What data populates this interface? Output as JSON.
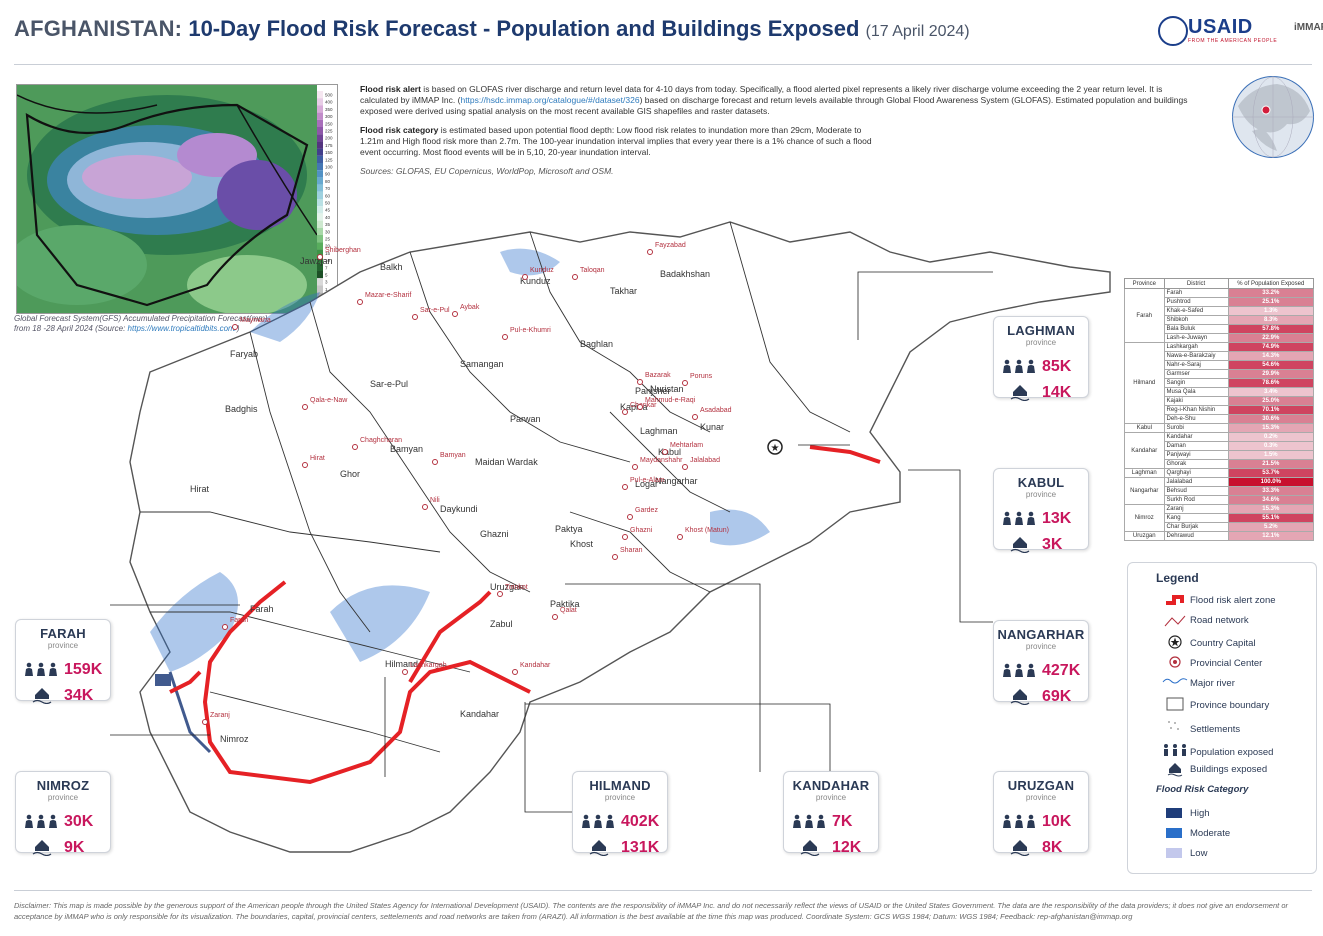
{
  "header": {
    "country": "AFGHANISTAN:",
    "title": "10-Day Flood Risk Forecast - Population and Buildings Exposed",
    "date": "(17 April 2024)",
    "usaid_label": "USAID",
    "usaid_sub": "FROM THE AMERICAN PEOPLE",
    "immap_label": "iMMAP"
  },
  "inset": {
    "caption_line1": "Global Forecast System(GFS) Accumulated Precipitation Forecast(mm)",
    "caption_line2_prefix": "from 18 -28 April 2024 (Source: ",
    "caption_link": "https://www.tropicaltidbits.com/",
    "caption_line2_suffix": ")",
    "scale": [
      "500",
      "400",
      "350",
      "300",
      "250",
      "225",
      "200",
      "175",
      "150",
      "125",
      "100",
      "90",
      "80",
      "70",
      "60",
      "50",
      "45",
      "40",
      "35",
      "30",
      "25",
      "20",
      "15",
      "10",
      "7",
      "5",
      "3",
      "1",
      "0.5",
      "0.2"
    ]
  },
  "info": {
    "p1_bold": "Flood risk alert",
    "p1_text": " is based on GLOFAS river discharge and return level data for 4-10 days from today. Specifically, a flood alerted pixel represents a likely river discharge volume exceeding the 2 year return level. It is calculated by iMMAP Inc. (",
    "p1_link": "https://hsdc.immap.org/catalogue/#/dataset/326",
    "p1_text2": ") based on discharge forecast and return levels available through Global Flood Awareness System (GLOFAS). Estimated population and buildings exposed were derived using spatial analysis on the most recent available GIS shapefiles and raster datasets.",
    "p2_bold": "Flood risk category",
    "p2_text": " is estimated based upon potential flood depth: Low flood risk relates to inundation more than 29cm, Moderate to 1.21m and High flood risk more than 2.7m.  The 100-year inundation interval implies that every year there is a 1% chance of such a flood event occurring. Most flood events will be in 5,10, 20-year inundation interval.",
    "sources": "Sources: GLOFAS, EU Copernicus, WorldPop, Microsoft and OSM."
  },
  "cards": [
    {
      "id": "laghman",
      "name": "LAGHMAN",
      "sub": "province",
      "pop": "85K",
      "bld": "14K"
    },
    {
      "id": "kabul",
      "name": "KABUL",
      "sub": "province",
      "pop": "13K",
      "bld": "3K"
    },
    {
      "id": "nangarhar",
      "name": "NANGARHAR",
      "sub": "province",
      "pop": "427K",
      "bld": "69K"
    },
    {
      "id": "uruzgan",
      "name": "URUZGAN",
      "sub": "province",
      "pop": "10K",
      "bld": "8K"
    },
    {
      "id": "kandahar",
      "name": "KANDAHAR",
      "sub": "province",
      "pop": "7K",
      "bld": "12K"
    },
    {
      "id": "hilmand",
      "name": "HILMAND",
      "sub": "province",
      "pop": "402K",
      "bld": "131K"
    },
    {
      "id": "nimroz",
      "name": "NIMROZ",
      "sub": "province",
      "pop": "30K",
      "bld": "9K"
    },
    {
      "id": "farah",
      "name": "FARAH",
      "sub": "province",
      "pop": "159K",
      "bld": "34K"
    }
  ],
  "table": {
    "headers": [
      "Province",
      "District",
      "% of Population Exposed"
    ],
    "rows": [
      {
        "province": "Farah",
        "span": 6,
        "district": "Farah",
        "pct": "33.2%",
        "v": 33.2
      },
      {
        "district": "Pushtrod",
        "pct": "25.1%",
        "v": 25.1
      },
      {
        "district": "Khak-e-Safed",
        "pct": "1.3%",
        "v": 1.3
      },
      {
        "district": "Shibkoh",
        "pct": "8.3%",
        "v": 8.3
      },
      {
        "district": "Bala Buluk",
        "pct": "57.8%",
        "v": 57.8
      },
      {
        "district": "Lash-e-Juwayn",
        "pct": "22.9%",
        "v": 22.9
      },
      {
        "province": "Hilmand",
        "span": 9,
        "district": "Lashkargah",
        "pct": "74.9%",
        "v": 74.9
      },
      {
        "district": "Nawa-e-Barakzaiy",
        "pct": "14.3%",
        "v": 14.3
      },
      {
        "district": "Nahr-e-Saraj",
        "pct": "54.6%",
        "v": 54.6
      },
      {
        "district": "Garmser",
        "pct": "29.9%",
        "v": 29.9
      },
      {
        "district": "Sangin",
        "pct": "78.6%",
        "v": 78.6
      },
      {
        "district": "Musa Qala",
        "pct": "3.4%",
        "v": 3.4
      },
      {
        "district": "Kajaki",
        "pct": "25.0%",
        "v": 25.0
      },
      {
        "district": "Reg-i-Khan Nishin",
        "pct": "70.1%",
        "v": 70.1
      },
      {
        "district": "Deh-e-Shu",
        "pct": "30.6%",
        "v": 30.6
      },
      {
        "province": "Kabul",
        "span": 1,
        "district": "Surobi",
        "pct": "15.3%",
        "v": 15.3
      },
      {
        "province": "Kandahar",
        "span": 4,
        "district": "Kandahar",
        "pct": "0.2%",
        "v": 0.2
      },
      {
        "district": "Daman",
        "pct": "0.3%",
        "v": 0.3
      },
      {
        "district": "Panjwayi",
        "pct": "1.5%",
        "v": 1.5
      },
      {
        "district": "Ghorak",
        "pct": "21.5%",
        "v": 21.5
      },
      {
        "province": "Laghman",
        "span": 1,
        "district": "Qarghayi",
        "pct": "53.7%",
        "v": 53.7
      },
      {
        "province": "Nangarhar",
        "span": 3,
        "district": "Jalalabad",
        "pct": "100.0%",
        "v": 100.0
      },
      {
        "district": "Behsud",
        "pct": "33.3%",
        "v": 33.3
      },
      {
        "district": "Surkh Rod",
        "pct": "34.6%",
        "v": 34.6
      },
      {
        "province": "Nimroz",
        "span": 3,
        "district": "Zaranj",
        "pct": "15.3%",
        "v": 15.3
      },
      {
        "district": "Kang",
        "pct": "55.1%",
        "v": 55.1
      },
      {
        "district": "Char Burjak",
        "pct": "5.2%",
        "v": 5.2
      },
      {
        "province": "Uruzgan",
        "span": 1,
        "district": "Dehrawud",
        "pct": "12.1%",
        "v": 12.1
      }
    ]
  },
  "legend": {
    "title": "Legend",
    "items": [
      "Flood risk alert zone",
      "Road network",
      "Country Capital",
      "Provincial Center",
      "Major river",
      "Province boundary",
      "Settlements",
      "Population exposed",
      "Buildings exposed"
    ],
    "category_title": "Flood Risk Category",
    "categories": [
      {
        "label": "High",
        "color": "#1f3d7a"
      },
      {
        "label": "Moderate",
        "color": "#2a6fc9"
      },
      {
        "label": "Low",
        "color": "#c3c8ec"
      }
    ]
  },
  "map_labels": {
    "provinces": [
      "Jawzjan",
      "Balkh",
      "Kunduz",
      "Takhar",
      "Badakhshan",
      "Faryab",
      "Samangan",
      "Baghlan",
      "Sar-e-Pul",
      "Badghis",
      "Panjsher",
      "Nuristan",
      "Kapisa",
      "Parwan",
      "Laghman",
      "Kunar",
      "Kabul",
      "Nangarhar",
      "Bamyan",
      "Maidan Wardak",
      "Logar",
      "Hirat",
      "Ghor",
      "Daykundi",
      "Ghazni",
      "Paktya",
      "Khost",
      "Uruzgan",
      "Paktika",
      "Zabul",
      "Farah",
      "Hilmand",
      "Kandahar",
      "Nimroz"
    ],
    "centers": [
      "Shiberghan",
      "Mazar-e-Sharif",
      "Sar-e-Pul",
      "Aybak",
      "Kunduz",
      "Taloqan",
      "Fayzabad",
      "Maymana",
      "Pul-e-Khumri",
      "Qala-e-Naw",
      "Bazarak",
      "Charikar",
      "Mahmud-e-Raqi",
      "Poruns",
      "Asadabad",
      "Mehtarlam",
      "Jalalabad",
      "Chaghcharan",
      "Bamyan",
      "Maydanshahr",
      "Pul-e-Alam",
      "Nili",
      "Ghazni",
      "Gardez",
      "Khost (Matun)",
      "Sharan",
      "Hirat",
      "Tirinkot",
      "Qalat",
      "Lashkargah",
      "Kandahar",
      "Farah",
      "Zaranj"
    ]
  },
  "disclaimer": "Disclaimer: This map is made possible by the generous support of the American people through the United States Agency for International Development (USAID). The contents are the responsibility of iMMAP Inc. and do not necessarily reflect the views of USAID or the United States Government. The data are the responsibility of the data providers; it does not give an endorsement or acceptance by iMMAP who is only responsible for its visualization. The boundaries, capital, provincial centers, settelements and road networks are taken from (ARAZI). All information is the best available at the time this map was produced. Coordinate System: GCS WGS 1984; Datum: WGS 1984; Feedback: rep-afghanistan@immap.org",
  "colors": {
    "alert": "#e52125",
    "accent": "#c8175d",
    "navy": "#1e3a6e",
    "high": "#1f3d7a",
    "moderate": "#2a6fc9",
    "low": "#c3c8ec"
  }
}
